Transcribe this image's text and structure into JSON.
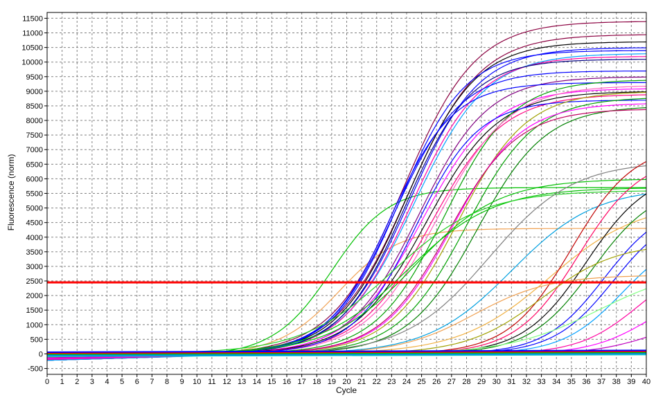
{
  "chart_data": {
    "type": "line",
    "title": "",
    "xlabel": "Cycle",
    "ylabel": "Fluorescence (norm)",
    "xlim": [
      0,
      40
    ],
    "ylim": [
      -700,
      11700
    ],
    "x_ticks": [
      0,
      1,
      2,
      3,
      4,
      5,
      6,
      7,
      8,
      9,
      10,
      11,
      12,
      13,
      14,
      15,
      16,
      17,
      18,
      19,
      20,
      21,
      22,
      23,
      24,
      25,
      26,
      27,
      28,
      29,
      30,
      31,
      32,
      33,
      34,
      35,
      36,
      37,
      38,
      39,
      40
    ],
    "y_ticks": [
      -500,
      0,
      500,
      1000,
      1500,
      2000,
      2500,
      3000,
      3500,
      4000,
      4500,
      5000,
      5500,
      6000,
      6500,
      7000,
      7500,
      8000,
      8500,
      9000,
      9500,
      10000,
      10500,
      11000,
      11500
    ],
    "grid": true,
    "legend": "none",
    "threshold": {
      "value": 2450,
      "color": "#ff0000"
    },
    "series_model": "sigmoid",
    "series": [
      {
        "color": "#00c000",
        "plateau": 5700,
        "midpoint": 19.0,
        "slope": 1.9
      },
      {
        "color": "#f0a050",
        "plateau": 4300,
        "midpoint": 19.5,
        "slope": 2.0
      },
      {
        "color": "#8b0040",
        "plateau": 11400,
        "midpoint": 23.8,
        "slope": 2.4
      },
      {
        "color": "#8b0040",
        "plateau": 10950,
        "midpoint": 24.1,
        "slope": 2.4
      },
      {
        "color": "#000000",
        "plateau": 10700,
        "midpoint": 24.0,
        "slope": 2.3
      },
      {
        "color": "#0000ff",
        "plateau": 10500,
        "midpoint": 24.2,
        "slope": 2.3
      },
      {
        "color": "#0000ff",
        "plateau": 10400,
        "midpoint": 23.5,
        "slope": 2.2
      },
      {
        "color": "#00a0ff",
        "plateau": 10300,
        "midpoint": 24.5,
        "slope": 2.4
      },
      {
        "color": "#ff00a0",
        "plateau": 10200,
        "midpoint": 24.3,
        "slope": 2.3
      },
      {
        "color": "#000080",
        "plateau": 10100,
        "midpoint": 23.9,
        "slope": 2.2
      },
      {
        "color": "#0000ff",
        "plateau": 9700,
        "midpoint": 23.2,
        "slope": 2.2
      },
      {
        "color": "#800080",
        "plateau": 9500,
        "midpoint": 24.8,
        "slope": 2.3
      },
      {
        "color": "#0000ff",
        "plateau": 9300,
        "midpoint": 22.9,
        "slope": 2.1
      },
      {
        "color": "#ff00ff",
        "plateau": 9100,
        "midpoint": 25.0,
        "slope": 2.4
      },
      {
        "color": "#000000",
        "plateau": 9000,
        "midpoint": 25.3,
        "slope": 2.4
      },
      {
        "color": "#ff0080",
        "plateau": 8900,
        "midpoint": 25.6,
        "slope": 2.4
      },
      {
        "color": "#00a000",
        "plateau": 9400,
        "midpoint": 26.5,
        "slope": 2.3
      },
      {
        "color": "#ff60c0",
        "plateau": 9200,
        "midpoint": 26.0,
        "slope": 2.4
      },
      {
        "color": "#0000ff",
        "plateau": 8700,
        "midpoint": 24.6,
        "slope": 2.1
      },
      {
        "color": "#a0a000",
        "plateau": 9000,
        "midpoint": 27.4,
        "slope": 2.3
      },
      {
        "color": "#00a000",
        "plateau": 8800,
        "midpoint": 28.0,
        "slope": 2.3
      },
      {
        "color": "#ff00ff",
        "plateau": 8600,
        "midpoint": 27.0,
        "slope": 2.3
      },
      {
        "color": "#008000",
        "plateau": 8500,
        "midpoint": 28.7,
        "slope": 2.3
      },
      {
        "color": "#c00060",
        "plateau": 8400,
        "midpoint": 26.8,
        "slope": 2.3
      },
      {
        "color": "#00c000",
        "plateau": 6000,
        "midpoint": 24.5,
        "slope": 2.8
      },
      {
        "color": "#00c000",
        "plateau": 5700,
        "midpoint": 24.0,
        "slope": 2.9
      },
      {
        "color": "#20d020",
        "plateau": 5600,
        "midpoint": 23.0,
        "slope": 3.0
      },
      {
        "color": "#808080",
        "plateau": 6600,
        "midpoint": 29.5,
        "slope": 2.8
      },
      {
        "color": "#00a0e0",
        "plateau": 5700,
        "midpoint": 31.0,
        "slope": 2.8
      },
      {
        "color": "#f0b040",
        "plateau": 5200,
        "midpoint": 33.5,
        "slope": 3.0
      },
      {
        "color": "#c00000",
        "plateau": 7200,
        "midpoint": 35.0,
        "slope": 2.1
      },
      {
        "color": "#ff0060",
        "plateau": 6800,
        "midpoint": 35.5,
        "slope": 2.1
      },
      {
        "color": "#000000",
        "plateau": 6300,
        "midpoint": 36.0,
        "slope": 2.1
      },
      {
        "color": "#008000",
        "plateau": 5800,
        "midpoint": 36.4,
        "slope": 2.1
      },
      {
        "color": "#0000ff",
        "plateau": 5200,
        "midpoint": 37.2,
        "slope": 2.0
      },
      {
        "color": "#0000ff",
        "plateau": 5000,
        "midpoint": 37.8,
        "slope": 2.0
      },
      {
        "color": "#00a0ff",
        "plateau": 4200,
        "midpoint": 38.4,
        "slope": 2.0
      },
      {
        "color": "#ff00a0",
        "plateau": 3300,
        "midpoint": 39.5,
        "slope": 2.0
      },
      {
        "color": "#ff00ff",
        "plateau": 2400,
        "midpoint": 40.3,
        "slope": 2.0
      },
      {
        "color": "#c000c0",
        "plateau": 1300,
        "midpoint": 40.5,
        "slope": 2.0
      },
      {
        "color": "#80ff80",
        "plateau": 3000,
        "midpoint": 36.8,
        "slope": 3.0
      },
      {
        "color": "#f0a050",
        "plateau": 2700,
        "midpoint": 28.5,
        "slope": 2.5
      },
      {
        "color": "#a0a000",
        "plateau": 3800,
        "midpoint": 33.0,
        "slope": 2.5
      }
    ]
  }
}
